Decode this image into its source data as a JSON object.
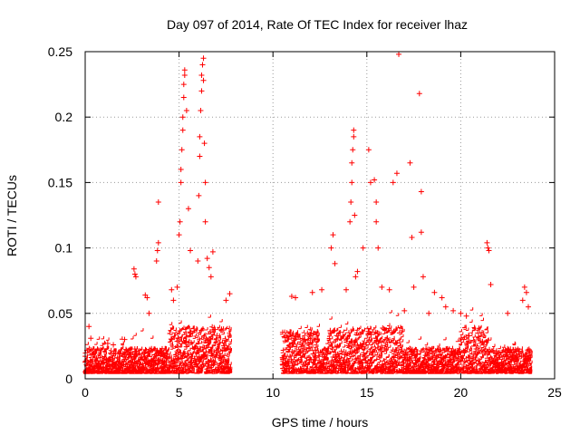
{
  "chart_data": {
    "type": "scatter",
    "title": "Day 097 of 2014, Rate Of TEC Index for receiver lhaz",
    "xlabel": "GPS time / hours",
    "ylabel": "ROTI / TECUs",
    "xlim": [
      0,
      25
    ],
    "ylim": [
      0,
      0.25
    ],
    "x_ticks": [
      "0",
      "5",
      "10",
      "15",
      "20",
      "25"
    ],
    "y_ticks": [
      "0",
      "0.05",
      "0.1",
      "0.15",
      "0.2",
      "0.25"
    ],
    "grid": true,
    "marker": "plus",
    "series": [
      {
        "name": "ROTI",
        "color": "#ff0000",
        "note": "Dense band of points ~0.005-0.03 TECU/min for hours 0-7.8 and 10.5-23.8; gap from ~7.8 to ~10.5 h. Representative outliers listed below.",
        "points": [
          [
            0.2,
            0.04
          ],
          [
            0.3,
            0.031
          ],
          [
            1.2,
            0.027
          ],
          [
            1.5,
            0.026
          ],
          [
            2.1,
            0.03
          ],
          [
            2.6,
            0.084
          ],
          [
            2.65,
            0.08
          ],
          [
            2.7,
            0.078
          ],
          [
            3.2,
            0.064
          ],
          [
            3.3,
            0.062
          ],
          [
            3.4,
            0.05
          ],
          [
            3.8,
            0.09
          ],
          [
            3.85,
            0.098
          ],
          [
            3.9,
            0.104
          ],
          [
            3.9,
            0.135
          ],
          [
            4.6,
            0.068
          ],
          [
            4.7,
            0.06
          ],
          [
            4.9,
            0.07
          ],
          [
            5.0,
            0.11
          ],
          [
            5.05,
            0.12
          ],
          [
            5.1,
            0.15
          ],
          [
            5.1,
            0.16
          ],
          [
            5.15,
            0.175
          ],
          [
            5.2,
            0.19
          ],
          [
            5.2,
            0.2
          ],
          [
            5.25,
            0.215
          ],
          [
            5.25,
            0.225
          ],
          [
            5.3,
            0.236
          ],
          [
            5.3,
            0.232
          ],
          [
            5.4,
            0.205
          ],
          [
            5.5,
            0.13
          ],
          [
            5.6,
            0.098
          ],
          [
            6.0,
            0.09
          ],
          [
            6.05,
            0.14
          ],
          [
            6.1,
            0.17
          ],
          [
            6.1,
            0.185
          ],
          [
            6.15,
            0.205
          ],
          [
            6.2,
            0.22
          ],
          [
            6.2,
            0.232
          ],
          [
            6.25,
            0.24
          ],
          [
            6.3,
            0.245
          ],
          [
            6.3,
            0.228
          ],
          [
            6.35,
            0.18
          ],
          [
            6.4,
            0.15
          ],
          [
            6.4,
            0.12
          ],
          [
            6.5,
            0.092
          ],
          [
            6.6,
            0.085
          ],
          [
            6.7,
            0.078
          ],
          [
            6.8,
            0.097
          ],
          [
            7.5,
            0.06
          ],
          [
            7.7,
            0.065
          ],
          [
            11.0,
            0.063
          ],
          [
            11.2,
            0.062
          ],
          [
            12.1,
            0.066
          ],
          [
            12.6,
            0.068
          ],
          [
            13.1,
            0.1
          ],
          [
            13.2,
            0.11
          ],
          [
            13.3,
            0.088
          ],
          [
            13.9,
            0.068
          ],
          [
            14.1,
            0.12
          ],
          [
            14.15,
            0.135
          ],
          [
            14.2,
            0.15
          ],
          [
            14.2,
            0.165
          ],
          [
            14.25,
            0.175
          ],
          [
            14.3,
            0.185
          ],
          [
            14.3,
            0.19
          ],
          [
            14.35,
            0.125
          ],
          [
            14.4,
            0.078
          ],
          [
            14.5,
            0.082
          ],
          [
            14.8,
            0.1
          ],
          [
            15.1,
            0.175
          ],
          [
            15.2,
            0.15
          ],
          [
            15.4,
            0.152
          ],
          [
            15.5,
            0.135
          ],
          [
            15.5,
            0.12
          ],
          [
            15.6,
            0.1
          ],
          [
            15.8,
            0.07
          ],
          [
            16.2,
            0.068
          ],
          [
            16.4,
            0.15
          ],
          [
            16.6,
            0.157
          ],
          [
            16.7,
            0.248
          ],
          [
            17.0,
            0.052
          ],
          [
            17.3,
            0.165
          ],
          [
            17.4,
            0.108
          ],
          [
            17.5,
            0.07
          ],
          [
            17.8,
            0.218
          ],
          [
            17.9,
            0.112
          ],
          [
            17.9,
            0.143
          ],
          [
            18.0,
            0.078
          ],
          [
            18.3,
            0.05
          ],
          [
            18.6,
            0.066
          ],
          [
            19.0,
            0.062
          ],
          [
            19.2,
            0.055
          ],
          [
            19.6,
            0.052
          ],
          [
            20.0,
            0.05
          ],
          [
            20.3,
            0.048
          ],
          [
            21.4,
            0.104
          ],
          [
            21.45,
            0.1
          ],
          [
            21.5,
            0.098
          ],
          [
            21.6,
            0.072
          ],
          [
            22.5,
            0.05
          ],
          [
            23.3,
            0.06
          ],
          [
            23.4,
            0.07
          ],
          [
            23.5,
            0.066
          ],
          [
            23.6,
            0.055
          ]
        ]
      }
    ]
  }
}
